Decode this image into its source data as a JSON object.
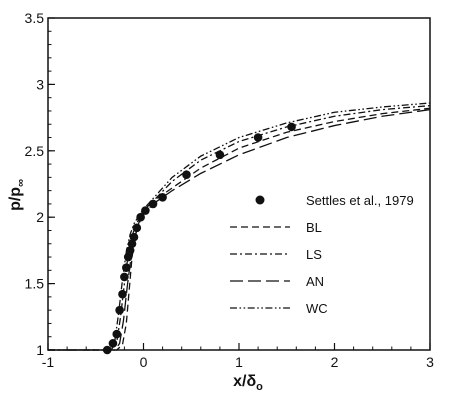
{
  "chart_data": {
    "type": "line",
    "title": "",
    "xlabel": "x/δ",
    "xlabel_sub": "o",
    "ylabel": "p/p",
    "ylabel_sub": "∞",
    "xlim": [
      -1,
      3
    ],
    "ylim": [
      1,
      3.5
    ],
    "xticks": [
      "-1",
      "0",
      "1",
      "2",
      "3"
    ],
    "yticks": [
      "1",
      "1.5",
      "2",
      "2.5",
      "3",
      "3.5"
    ],
    "grid": false,
    "legend_position": "right",
    "series": [
      {
        "name": "Settles et al., 1979",
        "style": "markers",
        "x": [
          -0.38,
          -0.32,
          -0.28,
          -0.25,
          -0.22,
          -0.2,
          -0.18,
          -0.16,
          -0.14,
          -0.12,
          -0.1,
          -0.07,
          -0.03,
          0.02,
          0.1,
          0.2,
          0.45,
          0.8,
          1.2,
          1.55
        ],
        "y": [
          1.0,
          1.05,
          1.12,
          1.3,
          1.42,
          1.55,
          1.62,
          1.7,
          1.75,
          1.8,
          1.85,
          1.92,
          2.0,
          2.05,
          2.1,
          2.15,
          2.32,
          2.47,
          2.6,
          2.68
        ]
      },
      {
        "name": "BL",
        "style": "dash",
        "x": [
          -1,
          -0.28,
          -0.22,
          -0.18,
          -0.15,
          -0.12,
          -0.08,
          -0.04,
          0.0,
          0.1,
          0.3,
          0.6,
          1.0,
          1.5,
          2.0,
          2.5,
          3.0
        ],
        "y": [
          1.0,
          1.0,
          1.04,
          1.2,
          1.45,
          1.7,
          1.88,
          1.98,
          2.04,
          2.12,
          2.22,
          2.37,
          2.52,
          2.64,
          2.72,
          2.78,
          2.82
        ]
      },
      {
        "name": "LS",
        "style": "dashdot",
        "x": [
          -1,
          -0.34,
          -0.28,
          -0.24,
          -0.2,
          -0.16,
          -0.12,
          -0.08,
          -0.04,
          0.0,
          0.1,
          0.3,
          0.6,
          1.0,
          1.5,
          2.0,
          2.5,
          3.0
        ],
        "y": [
          1.0,
          1.0,
          1.06,
          1.25,
          1.5,
          1.72,
          1.86,
          1.94,
          2.0,
          2.05,
          2.12,
          2.27,
          2.43,
          2.57,
          2.68,
          2.76,
          2.81,
          2.84
        ]
      },
      {
        "name": "AN",
        "style": "longdash",
        "x": [
          -1,
          -0.3,
          -0.25,
          -0.21,
          -0.17,
          -0.13,
          -0.09,
          -0.05,
          0.0,
          0.1,
          0.3,
          0.6,
          1.0,
          1.5,
          2.0,
          2.5,
          3.0
        ],
        "y": [
          1.0,
          1.0,
          1.05,
          1.22,
          1.48,
          1.7,
          1.85,
          1.95,
          2.02,
          2.1,
          2.2,
          2.33,
          2.47,
          2.6,
          2.69,
          2.76,
          2.81
        ]
      },
      {
        "name": "WC",
        "style": "dashdotdot",
        "x": [
          -1,
          -0.36,
          -0.3,
          -0.26,
          -0.22,
          -0.18,
          -0.14,
          -0.1,
          -0.05,
          0.0,
          0.1,
          0.3,
          0.6,
          1.0,
          1.5,
          2.0,
          2.5,
          3.0
        ],
        "y": [
          1.0,
          1.0,
          1.07,
          1.28,
          1.53,
          1.74,
          1.87,
          1.95,
          2.01,
          2.06,
          2.14,
          2.3,
          2.46,
          2.6,
          2.71,
          2.79,
          2.83,
          2.86
        ]
      }
    ]
  }
}
